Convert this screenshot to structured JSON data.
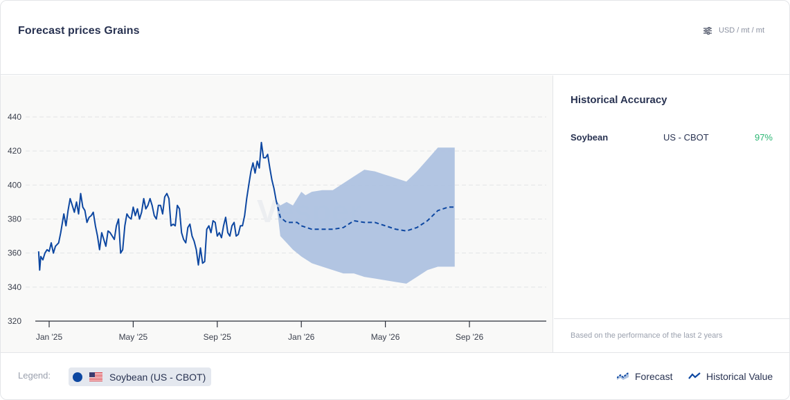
{
  "header": {
    "title": "Forecast prices Grains",
    "units_icon": "sliders-icon",
    "units": "USD / mt / mt"
  },
  "side_panel": {
    "title": "Historical Accuracy",
    "rows": [
      {
        "commodity": "Soybean",
        "exchange": "US - CBOT",
        "accuracy": "97%"
      }
    ],
    "footnote": "Based on the performance of the last 2 years"
  },
  "legend": {
    "label": "Legend:",
    "series_chip": "Soybean (US - CBOT)",
    "series_color": "#0d47a1",
    "flag_icon": "us-flag-icon",
    "forecast_label": "Forecast",
    "historical_label": "Historical Value"
  },
  "watermark": "Vesper",
  "colors": {
    "line": "#0d47a1",
    "band": "#aec2e0",
    "accuracy_good": "#2bb673"
  },
  "chart_data": {
    "type": "line",
    "title": "Forecast prices Grains",
    "xlabel": "",
    "ylabel": "",
    "ylim": [
      320,
      440
    ],
    "yticks": [
      320,
      340,
      360,
      380,
      400,
      420,
      440
    ],
    "xtick_labels": [
      "Jan '25",
      "May '25",
      "Sep '25",
      "Jan '26",
      "May '26",
      "Sep '26"
    ],
    "xtick_month_offsets": [
      0,
      4,
      8,
      12,
      16,
      20
    ],
    "x_unit": "months since Jan '25",
    "grid": true,
    "series": [
      {
        "name": "Historical Value",
        "style": "solid",
        "points": [
          [
            -0.5,
            361
          ],
          [
            -0.45,
            350
          ],
          [
            -0.4,
            358
          ],
          [
            -0.3,
            356
          ],
          [
            -0.2,
            360
          ],
          [
            -0.1,
            362
          ],
          [
            0.0,
            361
          ],
          [
            0.1,
            366
          ],
          [
            0.2,
            360
          ],
          [
            0.3,
            364
          ],
          [
            0.45,
            366
          ],
          [
            0.55,
            372
          ],
          [
            0.7,
            383
          ],
          [
            0.8,
            376
          ],
          [
            0.9,
            385
          ],
          [
            1.0,
            392
          ],
          [
            1.1,
            388
          ],
          [
            1.2,
            384
          ],
          [
            1.3,
            390
          ],
          [
            1.4,
            383
          ],
          [
            1.5,
            395
          ],
          [
            1.6,
            387
          ],
          [
            1.7,
            385
          ],
          [
            1.8,
            378
          ],
          [
            1.9,
            381
          ],
          [
            2.0,
            382
          ],
          [
            2.1,
            384
          ],
          [
            2.2,
            376
          ],
          [
            2.3,
            370
          ],
          [
            2.4,
            362
          ],
          [
            2.5,
            372
          ],
          [
            2.6,
            368
          ],
          [
            2.7,
            364
          ],
          [
            2.8,
            373
          ],
          [
            2.9,
            372
          ],
          [
            3.0,
            370
          ],
          [
            3.1,
            368
          ],
          [
            3.2,
            376
          ],
          [
            3.3,
            380
          ],
          [
            3.4,
            360
          ],
          [
            3.5,
            362
          ],
          [
            3.6,
            376
          ],
          [
            3.7,
            383
          ],
          [
            3.8,
            381
          ],
          [
            3.9,
            380
          ],
          [
            4.0,
            387
          ],
          [
            4.1,
            382
          ],
          [
            4.2,
            386
          ],
          [
            4.3,
            380
          ],
          [
            4.4,
            384
          ],
          [
            4.5,
            392
          ],
          [
            4.6,
            386
          ],
          [
            4.7,
            388
          ],
          [
            4.8,
            392
          ],
          [
            4.9,
            388
          ],
          [
            5.0,
            382
          ],
          [
            5.1,
            380
          ],
          [
            5.2,
            388
          ],
          [
            5.3,
            388
          ],
          [
            5.4,
            383
          ],
          [
            5.5,
            393
          ],
          [
            5.6,
            395
          ],
          [
            5.7,
            392
          ],
          [
            5.8,
            376
          ],
          [
            5.9,
            377
          ],
          [
            6.0,
            376
          ],
          [
            6.1,
            388
          ],
          [
            6.2,
            386
          ],
          [
            6.3,
            372
          ],
          [
            6.4,
            368
          ],
          [
            6.5,
            366
          ],
          [
            6.6,
            375
          ],
          [
            6.7,
            377
          ],
          [
            6.8,
            370
          ],
          [
            6.9,
            367
          ],
          [
            7.0,
            362
          ],
          [
            7.1,
            353
          ],
          [
            7.2,
            363
          ],
          [
            7.3,
            354
          ],
          [
            7.4,
            355
          ],
          [
            7.5,
            374
          ],
          [
            7.6,
            376
          ],
          [
            7.7,
            372
          ],
          [
            7.8,
            379
          ],
          [
            7.9,
            378
          ],
          [
            8.0,
            370
          ],
          [
            8.1,
            372
          ],
          [
            8.2,
            369
          ],
          [
            8.3,
            376
          ],
          [
            8.4,
            381
          ],
          [
            8.5,
            372
          ],
          [
            8.6,
            370
          ],
          [
            8.7,
            376
          ],
          [
            8.8,
            378
          ],
          [
            8.9,
            370
          ],
          [
            9.0,
            371
          ],
          [
            9.1,
            376
          ],
          [
            9.2,
            376
          ],
          [
            9.3,
            382
          ],
          [
            9.4,
            392
          ],
          [
            9.5,
            400
          ],
          [
            9.6,
            408
          ],
          [
            9.7,
            413
          ],
          [
            9.8,
            407
          ],
          [
            9.9,
            414
          ],
          [
            10.0,
            410
          ],
          [
            10.1,
            425
          ],
          [
            10.2,
            416
          ],
          [
            10.3,
            416
          ],
          [
            10.4,
            418
          ],
          [
            10.5,
            410
          ],
          [
            10.6,
            403
          ],
          [
            10.7,
            398
          ],
          [
            10.8,
            391
          ]
        ]
      },
      {
        "name": "Forecast",
        "style": "dashed",
        "points": [
          [
            10.8,
            391
          ],
          [
            11.0,
            381
          ],
          [
            11.3,
            378
          ],
          [
            11.6,
            378
          ],
          [
            11.8,
            378
          ],
          [
            12.0,
            376
          ],
          [
            12.5,
            374
          ],
          [
            13.0,
            374
          ],
          [
            13.5,
            374
          ],
          [
            14.0,
            375
          ],
          [
            14.5,
            379
          ],
          [
            15.0,
            378
          ],
          [
            15.5,
            378
          ],
          [
            16.0,
            376
          ],
          [
            16.5,
            374
          ],
          [
            17.0,
            373
          ],
          [
            17.5,
            375
          ],
          [
            18.0,
            379
          ],
          [
            18.5,
            385
          ],
          [
            19.0,
            387
          ],
          [
            19.3,
            387
          ]
        ]
      },
      {
        "name": "Forecast range",
        "style": "band",
        "upper": [
          [
            10.8,
            391
          ],
          [
            11.0,
            388
          ],
          [
            11.3,
            390
          ],
          [
            11.6,
            388
          ],
          [
            11.8,
            392
          ],
          [
            12.0,
            396
          ],
          [
            12.2,
            394
          ],
          [
            12.5,
            396
          ],
          [
            13.0,
            397
          ],
          [
            13.5,
            397
          ],
          [
            14.0,
            401
          ],
          [
            14.5,
            405
          ],
          [
            15.0,
            409
          ],
          [
            15.5,
            408
          ],
          [
            16.0,
            406
          ],
          [
            16.5,
            404
          ],
          [
            17.0,
            402
          ],
          [
            17.5,
            408
          ],
          [
            18.0,
            415
          ],
          [
            18.5,
            422
          ],
          [
            19.3,
            422
          ]
        ],
        "lower": [
          [
            10.8,
            391
          ],
          [
            11.0,
            370
          ],
          [
            11.3,
            366
          ],
          [
            11.6,
            362
          ],
          [
            11.8,
            360
          ],
          [
            12.0,
            358
          ],
          [
            12.5,
            354
          ],
          [
            13.0,
            352
          ],
          [
            13.5,
            350
          ],
          [
            14.0,
            348
          ],
          [
            14.5,
            348
          ],
          [
            15.0,
            346
          ],
          [
            15.5,
            345
          ],
          [
            16.0,
            344
          ],
          [
            16.5,
            343
          ],
          [
            17.0,
            342
          ],
          [
            17.5,
            346
          ],
          [
            18.0,
            350
          ],
          [
            18.5,
            352
          ],
          [
            19.3,
            352
          ]
        ]
      }
    ]
  }
}
